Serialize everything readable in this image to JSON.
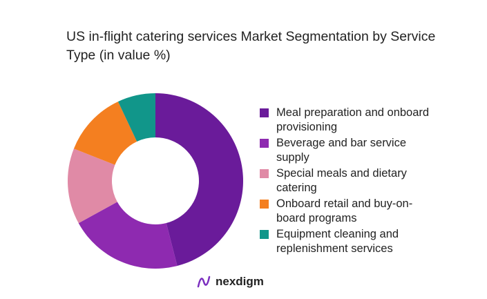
{
  "chart_data": {
    "type": "donut",
    "title": "US in-flight catering services Market Segmentation by Service Type (in value %)",
    "categories": [
      "Meal preparation and onboard provisioning",
      "Beverage and bar service supply",
      "Special meals and dietary catering",
      "Onboard retail and buy-on-board programs",
      "Equipment cleaning and replenishment services"
    ],
    "values": [
      46,
      21,
      14,
      12,
      7
    ],
    "colors": [
      "#6a1b9a",
      "#8e2ab0",
      "#e08aa6",
      "#f47f20",
      "#11968a"
    ],
    "legend": "right"
  },
  "logo": "nexdigm"
}
